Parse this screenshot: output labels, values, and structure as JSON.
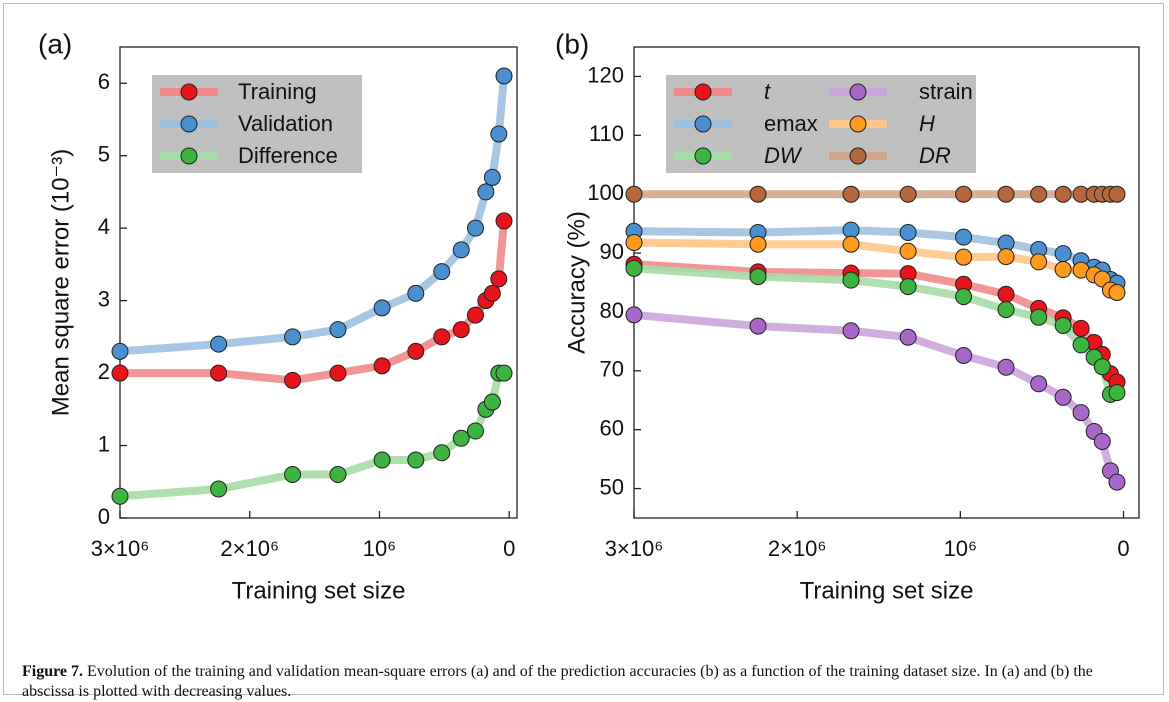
{
  "chart_data": [
    {
      "type": "line",
      "title": "(a)",
      "xlabel": "Training set size",
      "ylabel": "Mean square error (10⁻³)",
      "x": [
        3000000,
        2240000,
        1670000,
        1320000,
        980000,
        720000,
        520000,
        370000,
        260000,
        180000,
        130000,
        80000,
        40000
      ],
      "xlim": [
        3000000,
        -60000
      ],
      "xticks": [
        {
          "value": 3000000,
          "label": "3×10⁶"
        },
        {
          "value": 2000000,
          "label": "2×10⁶"
        },
        {
          "value": 1000000,
          "label": "10⁶"
        },
        0
      ],
      "ylim": [
        0,
        6.5
      ],
      "yticks": [
        0,
        1,
        2,
        3,
        4,
        5,
        6
      ],
      "legend_loc": "upper left",
      "series": [
        {
          "name": "Training",
          "color": "#e8141b",
          "line_color": "#f08a8a",
          "italic": false,
          "values": [
            2.0,
            2.0,
            1.9,
            2.0,
            2.1,
            2.3,
            2.5,
            2.6,
            2.8,
            3.0,
            3.1,
            3.3,
            4.1
          ]
        },
        {
          "name": "Validation",
          "color": "#4a8fd0",
          "line_color": "#9dc1e0",
          "italic": false,
          "values": [
            2.3,
            2.4,
            2.5,
            2.6,
            2.9,
            3.1,
            3.4,
            3.7,
            4.0,
            4.5,
            4.7,
            5.3,
            6.1
          ]
        },
        {
          "name": "Difference",
          "color": "#3fb33f",
          "line_color": "#a6dca6",
          "italic": false,
          "values": [
            0.3,
            0.4,
            0.6,
            0.6,
            0.8,
            0.8,
            0.9,
            1.1,
            1.2,
            1.5,
            1.6,
            2.0,
            2.0
          ]
        }
      ]
    },
    {
      "type": "line",
      "title": "(b)",
      "xlabel": "Training set size",
      "ylabel": "Accuracy (%)",
      "x": [
        3000000,
        2240000,
        1670000,
        1320000,
        980000,
        720000,
        520000,
        370000,
        260000,
        180000,
        130000,
        80000,
        40000
      ],
      "xlim": [
        3000000,
        -95000
      ],
      "xticks": [
        {
          "value": 3000000,
          "label": "3×10⁶"
        },
        {
          "value": 2000000,
          "label": "2×10⁶"
        },
        {
          "value": 1000000,
          "label": "10⁶"
        },
        0
      ],
      "ylim": [
        45,
        125
      ],
      "yticks": [
        50,
        60,
        70,
        80,
        90,
        100,
        110,
        120
      ],
      "legend_loc": "upper left",
      "series": [
        {
          "name": "t",
          "color": "#e8141b",
          "line_color": "#f08a8a",
          "italic": true,
          "values": [
            88.1,
            86.8,
            86.6,
            86.5,
            84.7,
            83.0,
            80.6,
            79.0,
            77.2,
            74.8,
            72.8,
            69.5,
            68.1
          ]
        },
        {
          "name": "emax",
          "color": "#4a8fd0",
          "line_color": "#9dc1e0",
          "italic": false,
          "values": [
            93.7,
            93.5,
            93.9,
            93.5,
            92.7,
            91.7,
            90.6,
            89.9,
            88.7,
            87.6,
            87.1,
            85.5,
            84.9
          ]
        },
        {
          "name": "DW",
          "color": "#3fb33f",
          "line_color": "#a6dca6",
          "italic": true,
          "values": [
            87.4,
            86.0,
            85.4,
            84.3,
            82.6,
            80.4,
            79.1,
            77.7,
            74.4,
            72.3,
            70.7,
            66.0,
            66.3
          ]
        },
        {
          "name": "strain",
          "color": "#a867c8",
          "line_color": "#cba6dc",
          "italic": false,
          "values": [
            79.5,
            77.6,
            76.8,
            75.7,
            72.6,
            70.6,
            67.8,
            65.5,
            62.9,
            59.7,
            58.0,
            53.0,
            51.1
          ]
        },
        {
          "name": "H",
          "color": "#ff9a1f",
          "line_color": "#ffc68a",
          "italic": true,
          "values": [
            91.8,
            91.5,
            91.5,
            90.3,
            89.3,
            89.4,
            88.5,
            87.2,
            87.1,
            86.3,
            85.6,
            83.7,
            83.3
          ]
        },
        {
          "name": "DR",
          "color": "#b5673b",
          "line_color": "#d1a78c",
          "italic": true,
          "values": [
            100,
            100,
            100,
            100,
            100,
            100,
            100,
            100,
            100,
            100,
            100,
            100,
            100
          ]
        }
      ]
    }
  ],
  "caption": {
    "label": "Figure 7.",
    "text": "Evolution of the training and validation mean-square errors (a) and of the prediction accuracies (b) as a function of the training dataset size. In (a) and (b) the abscissa is plotted with decreasing values."
  }
}
